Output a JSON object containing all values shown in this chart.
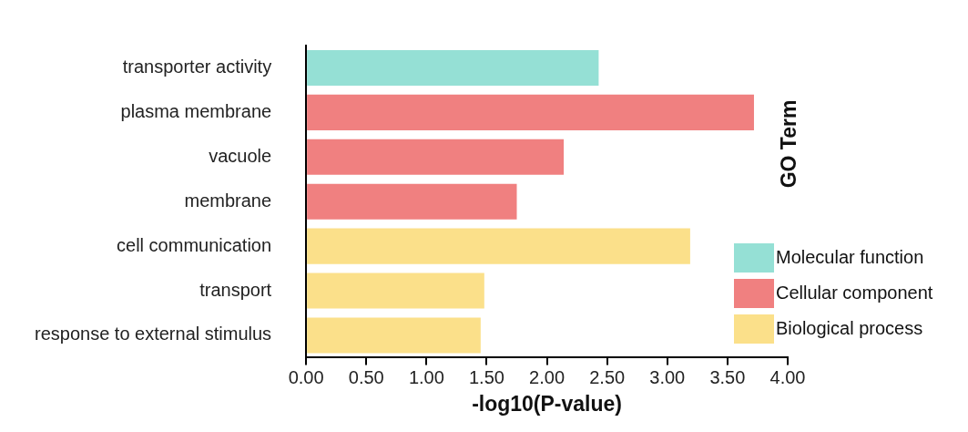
{
  "chart_data": {
    "type": "bar",
    "orientation": "horizontal",
    "stacked": true,
    "xlabel": "-log10(P-value)",
    "legend_title": "GO Term",
    "legend": "right",
    "categories": [
      "transporter activity",
      "plasma membrane",
      "vacuole",
      "membrane",
      "cell communication",
      "transport",
      "response to external stimulus"
    ],
    "series": [
      {
        "name": "Molecular function",
        "color": "#95e0d5",
        "values": [
          2.43,
          null,
          null,
          null,
          null,
          null,
          null
        ]
      },
      {
        "name": "Cellular component",
        "color": "#f08080",
        "values": [
          null,
          3.72,
          2.14,
          1.75,
          null,
          null,
          null
        ]
      },
      {
        "name": "Biological process",
        "color": "#fbe08a",
        "values": [
          null,
          null,
          null,
          null,
          3.19,
          1.48,
          1.45
        ]
      }
    ],
    "xlim": [
      0,
      4
    ],
    "xticks": [
      {
        "value": 0,
        "label": "0.00"
      },
      {
        "value": 0.5,
        "label": "0.50"
      },
      {
        "value": 1,
        "label": "1.00"
      },
      {
        "value": 1.5,
        "label": "1.50"
      },
      {
        "value": 2,
        "label": "2.00"
      },
      {
        "value": 2.5,
        "label": "2.50"
      },
      {
        "value": 3,
        "label": "3.00"
      },
      {
        "value": 3.5,
        "label": "3.50"
      },
      {
        "value": 4,
        "label": "4.00"
      }
    ],
    "grid": false
  }
}
